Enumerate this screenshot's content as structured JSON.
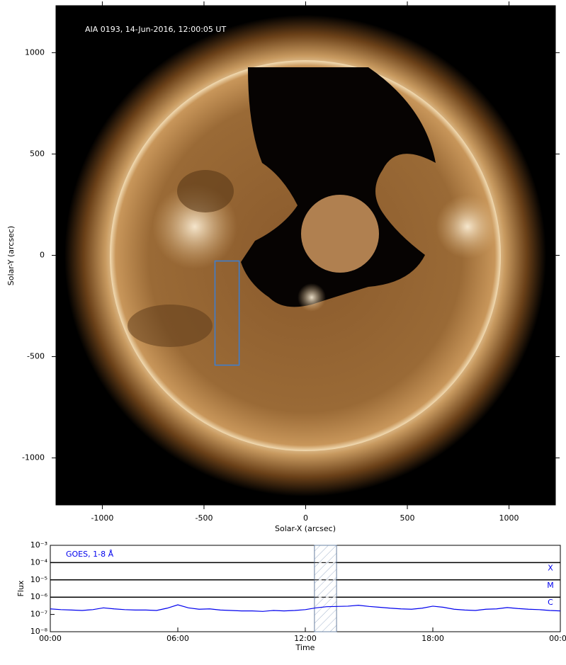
{
  "chart_data": [
    {
      "type": "image",
      "annotation": "AIA 0193, 14-Jun-2016, 12:00:05 UT",
      "xlabel": "Solar-X (arcsec)",
      "ylabel": "Solar-Y (arcsec)",
      "xlim": [
        -1228,
        1228
      ],
      "ylim": [
        -1232,
        1232
      ],
      "xticks": [
        -1000,
        -500,
        0,
        500,
        1000
      ],
      "yticks": [
        -1000,
        -500,
        0,
        500,
        1000
      ],
      "box": {
        "x": [
          -446,
          -327
        ],
        "y": [
          -542,
          -28
        ],
        "color": "#3a7fd5"
      }
    },
    {
      "type": "line",
      "ylog": true,
      "xlabel": "Time",
      "ylabel": "Flux",
      "xlim": [
        0,
        24
      ],
      "xticks": [
        {
          "value": 0,
          "label": "00:00"
        },
        {
          "value": 6,
          "label": "06:00"
        },
        {
          "value": 12,
          "label": "12:00"
        },
        {
          "value": 18,
          "label": "18:00"
        },
        {
          "value": 24,
          "label": "00:00"
        }
      ],
      "ylim": [
        1e-08,
        0.001
      ],
      "yticks": [
        {
          "value": 1e-08,
          "label": "10⁻⁸"
        },
        {
          "value": 1e-07,
          "label": "10⁻⁷"
        },
        {
          "value": 1e-06,
          "label": "10⁻⁶"
        },
        {
          "value": 1e-05,
          "label": "10⁻⁵"
        },
        {
          "value": 0.0001,
          "label": "10⁻⁴"
        },
        {
          "value": 0.001,
          "label": "10⁻³"
        }
      ],
      "levels": [
        {
          "value": 0.0001,
          "label": "X"
        },
        {
          "value": 1e-05,
          "label": "M"
        },
        {
          "value": 1e-06,
          "label": "C"
        }
      ],
      "highlight": [
        12.43,
        13.47
      ],
      "x": [
        0,
        0.5,
        1,
        1.5,
        2,
        2.5,
        3,
        3.5,
        4,
        4.5,
        5,
        5.5,
        6,
        6.5,
        7,
        7.5,
        8,
        8.5,
        9,
        9.5,
        10,
        10.5,
        11,
        11.5,
        12,
        12.5,
        13,
        13.5,
        14,
        14.5,
        15,
        15.5,
        16,
        16.5,
        17,
        17.5,
        18,
        18.5,
        19,
        19.5,
        20,
        20.5,
        21,
        21.5,
        22,
        22.5,
        23,
        23.5,
        24
      ],
      "series": [
        {
          "name": "GOES, 1-8 Å",
          "color": "#0000ee",
          "values": [
            2.1e-07,
            1.9e-07,
            1.8e-07,
            1.7e-07,
            1.9e-07,
            2.4e-07,
            2.1e-07,
            1.9e-07,
            1.8e-07,
            1.8e-07,
            1.7e-07,
            2.3e-07,
            3.6e-07,
            2.4e-07,
            2e-07,
            2.1e-07,
            1.8e-07,
            1.7e-07,
            1.6e-07,
            1.6e-07,
            1.5e-07,
            1.7e-07,
            1.6e-07,
            1.7e-07,
            1.9e-07,
            2.4e-07,
            2.8e-07,
            2.9e-07,
            3e-07,
            3.4e-07,
            2.9e-07,
            2.6e-07,
            2.3e-07,
            2.1e-07,
            2e-07,
            2.3e-07,
            3e-07,
            2.6e-07,
            2e-07,
            1.8e-07,
            1.7e-07,
            2e-07,
            2.1e-07,
            2.5e-07,
            2.2e-07,
            2e-07,
            1.9e-07,
            1.7e-07,
            1.6e-07
          ]
        }
      ]
    }
  ]
}
